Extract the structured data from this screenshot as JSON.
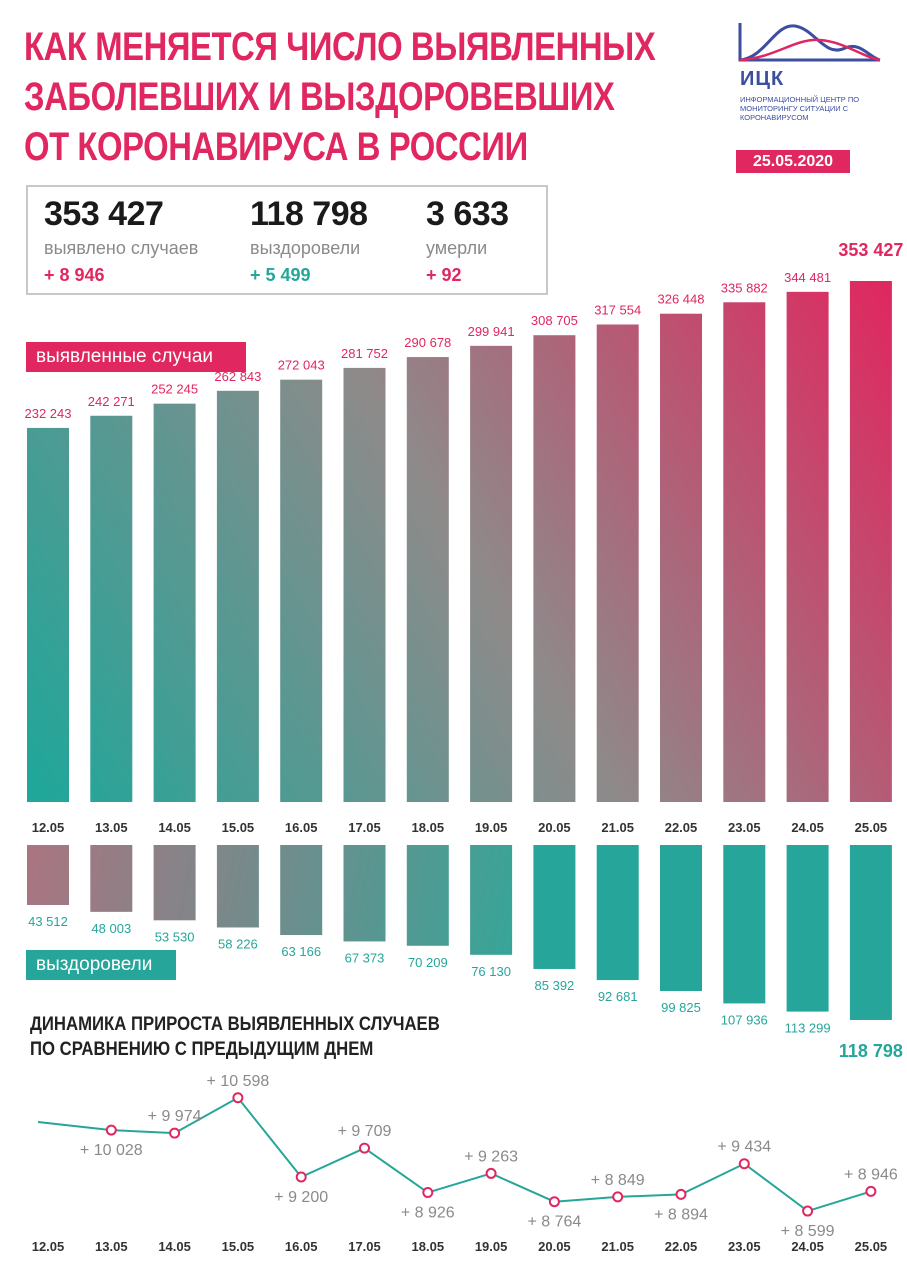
{
  "title_lines": [
    "КАК МЕНЯЕТСЯ ЧИСЛО ВЫЯВЛЕННЫХ",
    "ЗАБОЛЕВШИХ И ВЫЗДОРОВЕВШИХ",
    "ОТ КОРОНАВИРУСА В РОССИИ"
  ],
  "logo": {
    "name": "ИЦК",
    "subtitle": "ИНФОРМАЦИОННЫЙ ЦЕНТР ПО МОНИТОРИНГУ СИТУАЦИИ С КОРОНАВИРУСОМ",
    "icon": "wave-chart-logo-icon"
  },
  "date": "25.05.2020",
  "stats": [
    {
      "value": "353 427",
      "label": "выявлено случаев",
      "delta": "+ 8 946",
      "delta_color": "#e0275f"
    },
    {
      "value": "118 798",
      "label": "выздоровели",
      "delta": "+ 5 499",
      "delta_color": "#26a69a"
    },
    {
      "value": "3 633",
      "label": "умерли",
      "delta": "+ 92",
      "delta_color": "#e0275f"
    }
  ],
  "section_labels": {
    "cases": "выявленные случаи",
    "recovered": "выздоровели"
  },
  "dynamics_title_lines": [
    "ДИНАМИКА ПРИРОСТА ВЫЯВЛЕННЫХ СЛУЧАЕВ",
    "ПО СРАВНЕНИЮ С ПРЕДЫДУЩИМ ДНЕМ"
  ],
  "colors": {
    "accent": "#e0275f",
    "teal": "#26a69a",
    "gray_mid": "#8a8a8a"
  },
  "chart_data": [
    {
      "type": "bar",
      "title": "выявленные случаи",
      "categories": [
        "12.05",
        "13.05",
        "14.05",
        "15.05",
        "16.05",
        "17.05",
        "18.05",
        "19.05",
        "20.05",
        "21.05",
        "22.05",
        "23.05",
        "24.05",
        "25.05"
      ],
      "values": [
        232243,
        242271,
        252245,
        262843,
        272043,
        281752,
        290678,
        299941,
        308705,
        317554,
        326448,
        335882,
        344481,
        353427
      ],
      "value_labels": [
        "232 243",
        "242 271",
        "252 245",
        "262 843",
        "272 043",
        "281 752",
        "290 678",
        "299 941",
        "308 705",
        "317 554",
        "326 448",
        "335 882",
        "344 481",
        "353 427"
      ],
      "ylim": [
        0,
        360000
      ],
      "gradient": [
        "#1ea79a",
        "#e0275f"
      ]
    },
    {
      "type": "bar",
      "title": "выздоровели",
      "orientation": "downward",
      "categories": [
        "12.05",
        "13.05",
        "14.05",
        "15.05",
        "16.05",
        "17.05",
        "18.05",
        "19.05",
        "20.05",
        "21.05",
        "22.05",
        "23.05",
        "24.05",
        "25.05"
      ],
      "values": [
        43512,
        48003,
        53530,
        58226,
        63166,
        67373,
        70209,
        76130,
        85392,
        92681,
        99825,
        107936,
        113299,
        118798
      ],
      "value_labels": [
        "43 512",
        "48 003",
        "53 530",
        "58 226",
        "63 166",
        "67 373",
        "70 209",
        "76 130",
        "85 392",
        "92 681",
        "99 825",
        "107 936",
        "113 299",
        "118 798"
      ],
      "ylim": [
        0,
        120000
      ]
    },
    {
      "type": "line",
      "title": "ДИНАМИКА ПРИРОСТА ВЫЯВЛЕННЫХ СЛУЧАЕВ ПО СРАВНЕНИЮ С ПРЕДЫДУЩИМ ДНЕМ",
      "x": [
        "12.05",
        "13.05",
        "14.05",
        "15.05",
        "16.05",
        "17.05",
        "18.05",
        "19.05",
        "20.05",
        "21.05",
        "22.05",
        "23.05",
        "24.05",
        "25.05"
      ],
      "points": [
        {
          "x": "13.05",
          "y": 10028,
          "label": "+ 10 028"
        },
        {
          "x": "14.05",
          "y": 9974,
          "label": "+ 9 974"
        },
        {
          "x": "15.05",
          "y": 10598,
          "label": "+ 10 598"
        },
        {
          "x": "16.05",
          "y": 9200,
          "label": "+ 9 200"
        },
        {
          "x": "17.05",
          "y": 9709,
          "label": "+ 9 709"
        },
        {
          "x": "18.05",
          "y": 8926,
          "label": "+ 8 926"
        },
        {
          "x": "19.05",
          "y": 9263,
          "label": "+ 9 263"
        },
        {
          "x": "20.05",
          "y": 8764,
          "label": "+ 8 764"
        },
        {
          "x": "21.05",
          "y": 8849,
          "label": "+ 8 849"
        },
        {
          "x": "22.05",
          "y": 8894,
          "label": "+ 8 894"
        },
        {
          "x": "23.05",
          "y": 9434,
          "label": "+ 9 434"
        },
        {
          "x": "24.05",
          "y": 8599,
          "label": "+ 8 599"
        },
        {
          "x": "25.05",
          "y": 8946,
          "label": "+ 8 946"
        }
      ],
      "label_positions": [
        "below",
        "above",
        "above",
        "below",
        "above",
        "below",
        "above",
        "below",
        "above",
        "below",
        "above",
        "below",
        "above"
      ],
      "ylim": [
        8000,
        11000
      ]
    }
  ]
}
